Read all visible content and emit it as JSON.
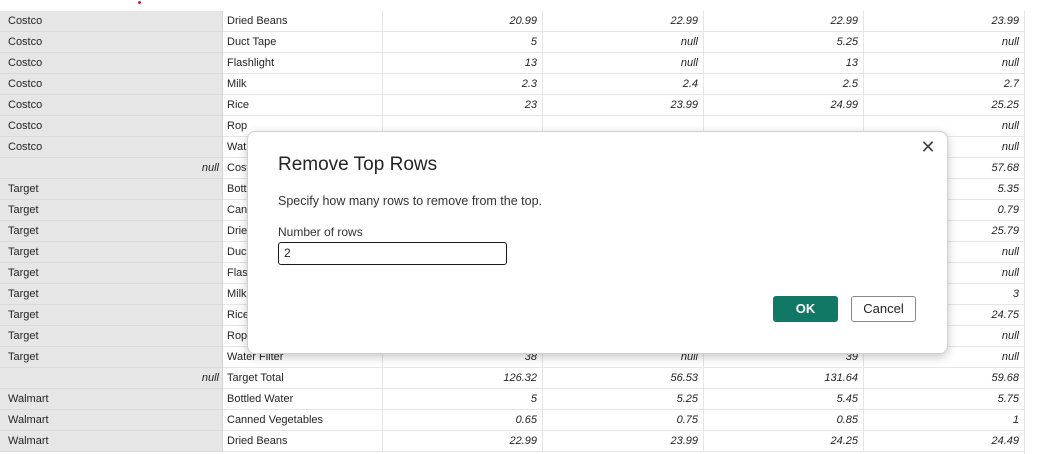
{
  "dialog": {
    "title": "Remove Top Rows",
    "description": "Specify how many rows to remove from the top.",
    "field_label": "Number of rows",
    "field_value": "2",
    "ok_label": "OK",
    "cancel_label": "Cancel",
    "close_glyph": "✕",
    "ok_color": "#117865"
  },
  "table": {
    "rows": [
      {
        "store": "Costco",
        "store_null": "",
        "item": "Dried Beans",
        "v": [
          "20.99",
          "22.99",
          "22.99",
          "23.99"
        ]
      },
      {
        "store": "Costco",
        "store_null": "",
        "item": "Duct Tape",
        "v": [
          "5",
          "null",
          "5.25",
          "null"
        ]
      },
      {
        "store": "Costco",
        "store_null": "",
        "item": "Flashlight",
        "v": [
          "13",
          "null",
          "13",
          "null"
        ]
      },
      {
        "store": "Costco",
        "store_null": "",
        "item": "Milk",
        "v": [
          "2.3",
          "2.4",
          "2.5",
          "2.7"
        ]
      },
      {
        "store": "Costco",
        "store_null": "",
        "item": "Rice",
        "v": [
          "23",
          "23.99",
          "24.99",
          "25.25"
        ]
      },
      {
        "store": "Costco",
        "store_null": "",
        "item": "Rop",
        "v": [
          "",
          "",
          "",
          "null"
        ]
      },
      {
        "store": "Costco",
        "store_null": "",
        "item": "Wat",
        "v": [
          "",
          "",
          "",
          "null"
        ]
      },
      {
        "store": "",
        "store_null": "null",
        "item": "Cost",
        "v": [
          "",
          "",
          "",
          "57.68"
        ]
      },
      {
        "store": "Target",
        "store_null": "",
        "item": "Bott",
        "v": [
          "",
          "",
          "",
          "5.35"
        ]
      },
      {
        "store": "Target",
        "store_null": "",
        "item": "Cann",
        "v": [
          "",
          "",
          "",
          "0.79"
        ]
      },
      {
        "store": "Target",
        "store_null": "",
        "item": "Drie",
        "v": [
          "",
          "",
          "",
          "25.79"
        ]
      },
      {
        "store": "Target",
        "store_null": "",
        "item": "Duc",
        "v": [
          "",
          "",
          "",
          "null"
        ]
      },
      {
        "store": "Target",
        "store_null": "",
        "item": "Flasl",
        "v": [
          "",
          "",
          "",
          "null"
        ]
      },
      {
        "store": "Target",
        "store_null": "",
        "item": "Milk",
        "v": [
          "",
          "",
          "",
          "3"
        ]
      },
      {
        "store": "Target",
        "store_null": "",
        "item": "Rice",
        "v": [
          "",
          "",
          "",
          "24.75"
        ]
      },
      {
        "store": "Target",
        "store_null": "",
        "item": "Rope",
        "v": [
          "",
          "",
          "",
          "null"
        ]
      },
      {
        "store": "Target",
        "store_null": "",
        "item": "Water Filter",
        "v": [
          "38",
          "null",
          "39",
          "null"
        ]
      },
      {
        "store": "",
        "store_null": "null",
        "item": "Target Total",
        "v": [
          "126.32",
          "56.53",
          "131.64",
          "59.68"
        ]
      },
      {
        "store": "Walmart",
        "store_null": "",
        "item": "Bottled Water",
        "v": [
          "5",
          "5.25",
          "5.45",
          "5.75"
        ]
      },
      {
        "store": "Walmart",
        "store_null": "",
        "item": "Canned Vegetables",
        "v": [
          "0.65",
          "0.75",
          "0.85",
          "1"
        ]
      },
      {
        "store": "Walmart",
        "store_null": "",
        "item": "Dried Beans",
        "v": [
          "22.99",
          "23.99",
          "24.25",
          "24.49"
        ]
      }
    ]
  }
}
